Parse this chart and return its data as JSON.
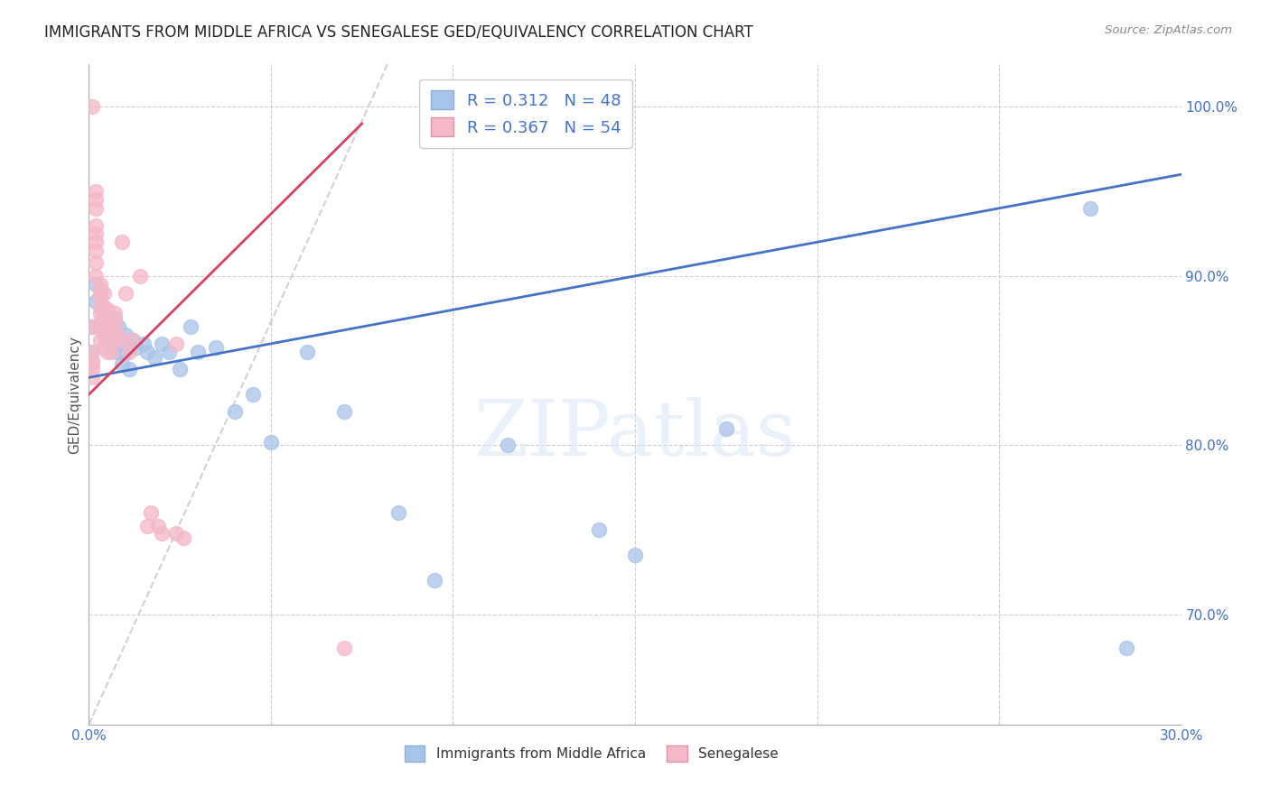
{
  "title": "IMMIGRANTS FROM MIDDLE AFRICA VS SENEGALESE GED/EQUIVALENCY CORRELATION CHART",
  "source": "Source: ZipAtlas.com",
  "ylabel": "GED/Equivalency",
  "xlim": [
    0.0,
    0.3
  ],
  "ylim": [
    0.635,
    1.025
  ],
  "blue_color": "#a8c4e8",
  "pink_color": "#f4b8c8",
  "blue_line_color": "#4472c4",
  "pink_line_color": "#d44060",
  "dash_color": "#cccccc",
  "R_blue": 0.312,
  "N_blue": 48,
  "R_pink": 0.367,
  "N_pink": 54,
  "legend_label_blue": "Immigrants from Middle Africa",
  "legend_label_pink": "Senegalese",
  "watermark": "ZIPatlas",
  "blue_x": [
    0.001,
    0.001,
    0.002,
    0.002,
    0.003,
    0.003,
    0.003,
    0.004,
    0.004,
    0.005,
    0.005,
    0.005,
    0.006,
    0.006,
    0.007,
    0.007,
    0.008,
    0.008,
    0.009,
    0.009,
    0.01,
    0.01,
    0.011,
    0.011,
    0.012,
    0.013,
    0.015,
    0.016,
    0.018,
    0.02,
    0.022,
    0.025,
    0.028,
    0.03,
    0.035,
    0.04,
    0.045,
    0.05,
    0.06,
    0.07,
    0.085,
    0.095,
    0.115,
    0.14,
    0.15,
    0.175,
    0.275,
    0.285
  ],
  "blue_y": [
    0.87,
    0.855,
    0.895,
    0.885,
    0.892,
    0.888,
    0.872,
    0.88,
    0.868,
    0.875,
    0.87,
    0.862,
    0.868,
    0.86,
    0.875,
    0.858,
    0.87,
    0.855,
    0.862,
    0.848,
    0.865,
    0.855,
    0.858,
    0.845,
    0.862,
    0.858,
    0.86,
    0.855,
    0.852,
    0.86,
    0.855,
    0.845,
    0.87,
    0.855,
    0.858,
    0.82,
    0.83,
    0.802,
    0.855,
    0.82,
    0.76,
    0.72,
    0.8,
    0.75,
    0.735,
    0.81,
    0.94,
    0.68
  ],
  "pink_x": [
    0.001,
    0.001,
    0.001,
    0.001,
    0.001,
    0.001,
    0.001,
    0.002,
    0.002,
    0.002,
    0.002,
    0.002,
    0.002,
    0.002,
    0.002,
    0.002,
    0.003,
    0.003,
    0.003,
    0.003,
    0.003,
    0.003,
    0.003,
    0.004,
    0.004,
    0.004,
    0.004,
    0.004,
    0.004,
    0.005,
    0.005,
    0.005,
    0.005,
    0.005,
    0.006,
    0.006,
    0.006,
    0.007,
    0.007,
    0.008,
    0.009,
    0.009,
    0.01,
    0.011,
    0.012,
    0.014,
    0.016,
    0.017,
    0.019,
    0.02,
    0.024,
    0.024,
    0.026,
    0.07
  ],
  "pink_y": [
    0.855,
    0.85,
    0.848,
    0.845,
    0.84,
    0.87,
    1.0,
    0.95,
    0.945,
    0.94,
    0.93,
    0.925,
    0.92,
    0.915,
    0.908,
    0.9,
    0.895,
    0.892,
    0.888,
    0.882,
    0.878,
    0.872,
    0.862,
    0.89,
    0.882,
    0.878,
    0.872,
    0.865,
    0.858,
    0.88,
    0.875,
    0.868,
    0.862,
    0.855,
    0.87,
    0.862,
    0.855,
    0.878,
    0.872,
    0.865,
    0.92,
    0.862,
    0.89,
    0.855,
    0.862,
    0.9,
    0.752,
    0.76,
    0.752,
    0.748,
    0.86,
    0.748,
    0.745,
    0.68
  ],
  "blue_trendline_x": [
    0.0,
    0.3
  ],
  "blue_trendline_y": [
    0.84,
    0.96
  ],
  "pink_trendline_x": [
    0.0,
    0.075
  ],
  "pink_trendline_y": [
    0.83,
    0.99
  ],
  "diag_line_x": [
    0.0,
    0.082
  ],
  "diag_line_y": [
    0.635,
    1.025
  ]
}
